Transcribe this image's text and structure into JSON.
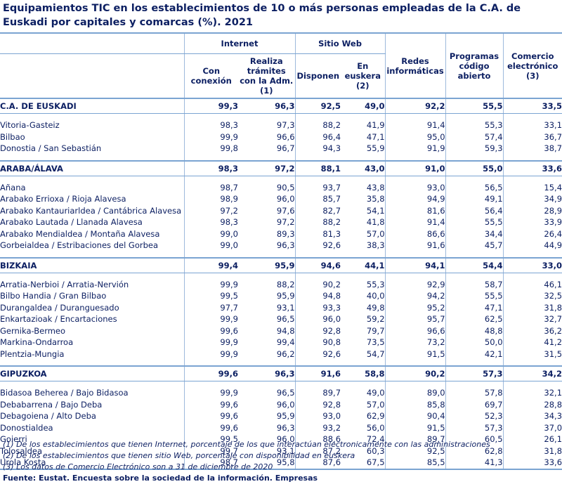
{
  "title": "Equipamientos TIC en los establecimientos de 10 o más personas empleadas de la C.A. de Euskadi por capitales y comarcas (%). 2021",
  "headers": {
    "internet": "Internet",
    "sitio_web": "Sitio Web",
    "con_conexion": "Con conexión",
    "realiza_tramites": "Realiza trámites con la Adm. (1)",
    "disponen": "Disponen",
    "en_euskera": "En euskera (2)",
    "redes": "Redes informáticas",
    "programas": "Programas código abierto",
    "comercio": "Comercio electrónico (3)"
  },
  "sections": [
    {
      "region": {
        "label": "C.A. DE EUSKADI",
        "values": [
          "99,3",
          "96,3",
          "92,5",
          "49,0",
          "92,2",
          "55,5",
          "33,5"
        ]
      },
      "rows": [
        {
          "label": "Vitoria-Gasteiz",
          "values": [
            "98,3",
            "97,3",
            "88,2",
            "41,9",
            "91,4",
            "55,3",
            "33,1"
          ]
        },
        {
          "label": "Bilbao",
          "values": [
            "99,9",
            "96,6",
            "96,4",
            "47,1",
            "95,0",
            "57,4",
            "36,7"
          ]
        },
        {
          "label": "Donostia / San Sebastián",
          "values": [
            "99,8",
            "96,7",
            "94,3",
            "55,9",
            "91,9",
            "59,3",
            "38,7"
          ]
        }
      ]
    },
    {
      "region": {
        "label": "ARABA/ÁLAVA",
        "values": [
          "98,3",
          "97,2",
          "88,1",
          "43,0",
          "91,0",
          "55,0",
          "33,6"
        ]
      },
      "rows": [
        {
          "label": "Añana",
          "values": [
            "98,7",
            "90,5",
            "93,7",
            "43,8",
            "93,0",
            "56,5",
            "15,4"
          ]
        },
        {
          "label": "Arabako Errioxa / Rioja Alavesa",
          "values": [
            "98,9",
            "96,0",
            "85,7",
            "35,8",
            "94,9",
            "49,1",
            "34,9"
          ]
        },
        {
          "label": "Arabako Kantauriarldea / Cantábrica Alavesa",
          "values": [
            "97,2",
            "97,6",
            "82,7",
            "54,1",
            "81,6",
            "56,4",
            "28,9"
          ]
        },
        {
          "label": "Arabako Lautada  /  Llanada Alavesa",
          "values": [
            "98,3",
            "97,2",
            "88,2",
            "41,8",
            "91,4",
            "55,5",
            "33,9"
          ]
        },
        {
          "label": "Arabako Mendialdea  /  Montaña Alavesa",
          "values": [
            "99,0",
            "89,3",
            "81,3",
            "57,0",
            "86,6",
            "34,4",
            "26,4"
          ]
        },
        {
          "label": "Gorbeialdea / Estribaciones del Gorbea",
          "values": [
            "99,0",
            "96,3",
            "92,6",
            "38,3",
            "91,6",
            "45,7",
            "44,9"
          ]
        }
      ]
    },
    {
      "region": {
        "label": "BIZKAIA",
        "values": [
          "99,4",
          "95,9",
          "94,6",
          "44,1",
          "94,1",
          "54,4",
          "33,0"
        ]
      },
      "rows": [
        {
          "label": "Arratia-Nerbioi / Arratia-Nervión",
          "values": [
            "99,9",
            "88,2",
            "90,2",
            "55,3",
            "92,9",
            "58,7",
            "46,1"
          ]
        },
        {
          "label": "Bilbo Handia  /  Gran Bilbao",
          "values": [
            "99,5",
            "95,9",
            "94,8",
            "40,0",
            "94,2",
            "55,5",
            "32,5"
          ]
        },
        {
          "label": "Durangaldea  /  Duranguesado",
          "values": [
            "97,7",
            "93,1",
            "93,3",
            "49,8",
            "95,2",
            "47,1",
            "31,8"
          ]
        },
        {
          "label": "Enkartazioak  /  Encartaciones",
          "values": [
            "99,9",
            "96,5",
            "96,0",
            "59,2",
            "95,7",
            "62,5",
            "32,7"
          ]
        },
        {
          "label": "Gernika-Bermeo",
          "values": [
            "99,6",
            "94,8",
            "92,8",
            "79,7",
            "96,6",
            "48,8",
            "36,2"
          ]
        },
        {
          "label": "Markina-Ondarroa",
          "values": [
            "99,9",
            "99,4",
            "90,8",
            "73,5",
            "73,2",
            "50,0",
            "41,2"
          ]
        },
        {
          "label": "Plentzia-Mungia",
          "values": [
            "99,9",
            "96,2",
            "92,6",
            "54,7",
            "91,5",
            "42,1",
            "31,5"
          ]
        }
      ]
    },
    {
      "region": {
        "label": "GIPUZKOA",
        "values": [
          "99,6",
          "96,3",
          "91,6",
          "58,8",
          "90,2",
          "57,3",
          "34,2"
        ]
      },
      "rows": [
        {
          "label": "Bidasoa Beherea  /  Bajo Bidasoa",
          "values": [
            "99,9",
            "96,5",
            "89,7",
            "49,0",
            "89,0",
            "57,8",
            "32,1"
          ]
        },
        {
          "label": "Debabarrena / Bajo Deba",
          "values": [
            "99,6",
            "96,0",
            "92,8",
            "57,0",
            "85,8",
            "69,7",
            "28,8"
          ]
        },
        {
          "label": "Debagoiena  /  Alto Deba",
          "values": [
            "99,6",
            "95,9",
            "93,0",
            "62,9",
            "90,4",
            "52,3",
            "34,3"
          ]
        },
        {
          "label": "Donostialdea",
          "values": [
            "99,6",
            "96,3",
            "93,2",
            "56,0",
            "91,5",
            "57,3",
            "37,0"
          ]
        },
        {
          "label": "Goierri",
          "values": [
            "99,5",
            "96,0",
            "88,6",
            "72,4",
            "89,7",
            "60,5",
            "26,1"
          ]
        },
        {
          "label": "Tolosaldea",
          "values": [
            "99,7",
            "93,1",
            "87,2",
            "60,3",
            "92,5",
            "62,8",
            "31,8"
          ]
        },
        {
          "label": "Urola Kosta",
          "values": [
            "98,7",
            "95,8",
            "87,6",
            "67,5",
            "85,5",
            "41,3",
            "33,6"
          ]
        }
      ]
    }
  ],
  "notes": [
    "(1) De los establecimientos que tienen Internet, porcentaje de los que interactúan electronicamente con las administraciones",
    "(2) De los establecimientos que tienen sitio Web, porcentaje con disponibilidad en euskera",
    "(3) Los datos de Comercio Electrónico son a 31 de diciembre de 2020"
  ],
  "source": "Fuente: Eustat. Encuesta sobre la sociedad de la información. Empresas"
}
